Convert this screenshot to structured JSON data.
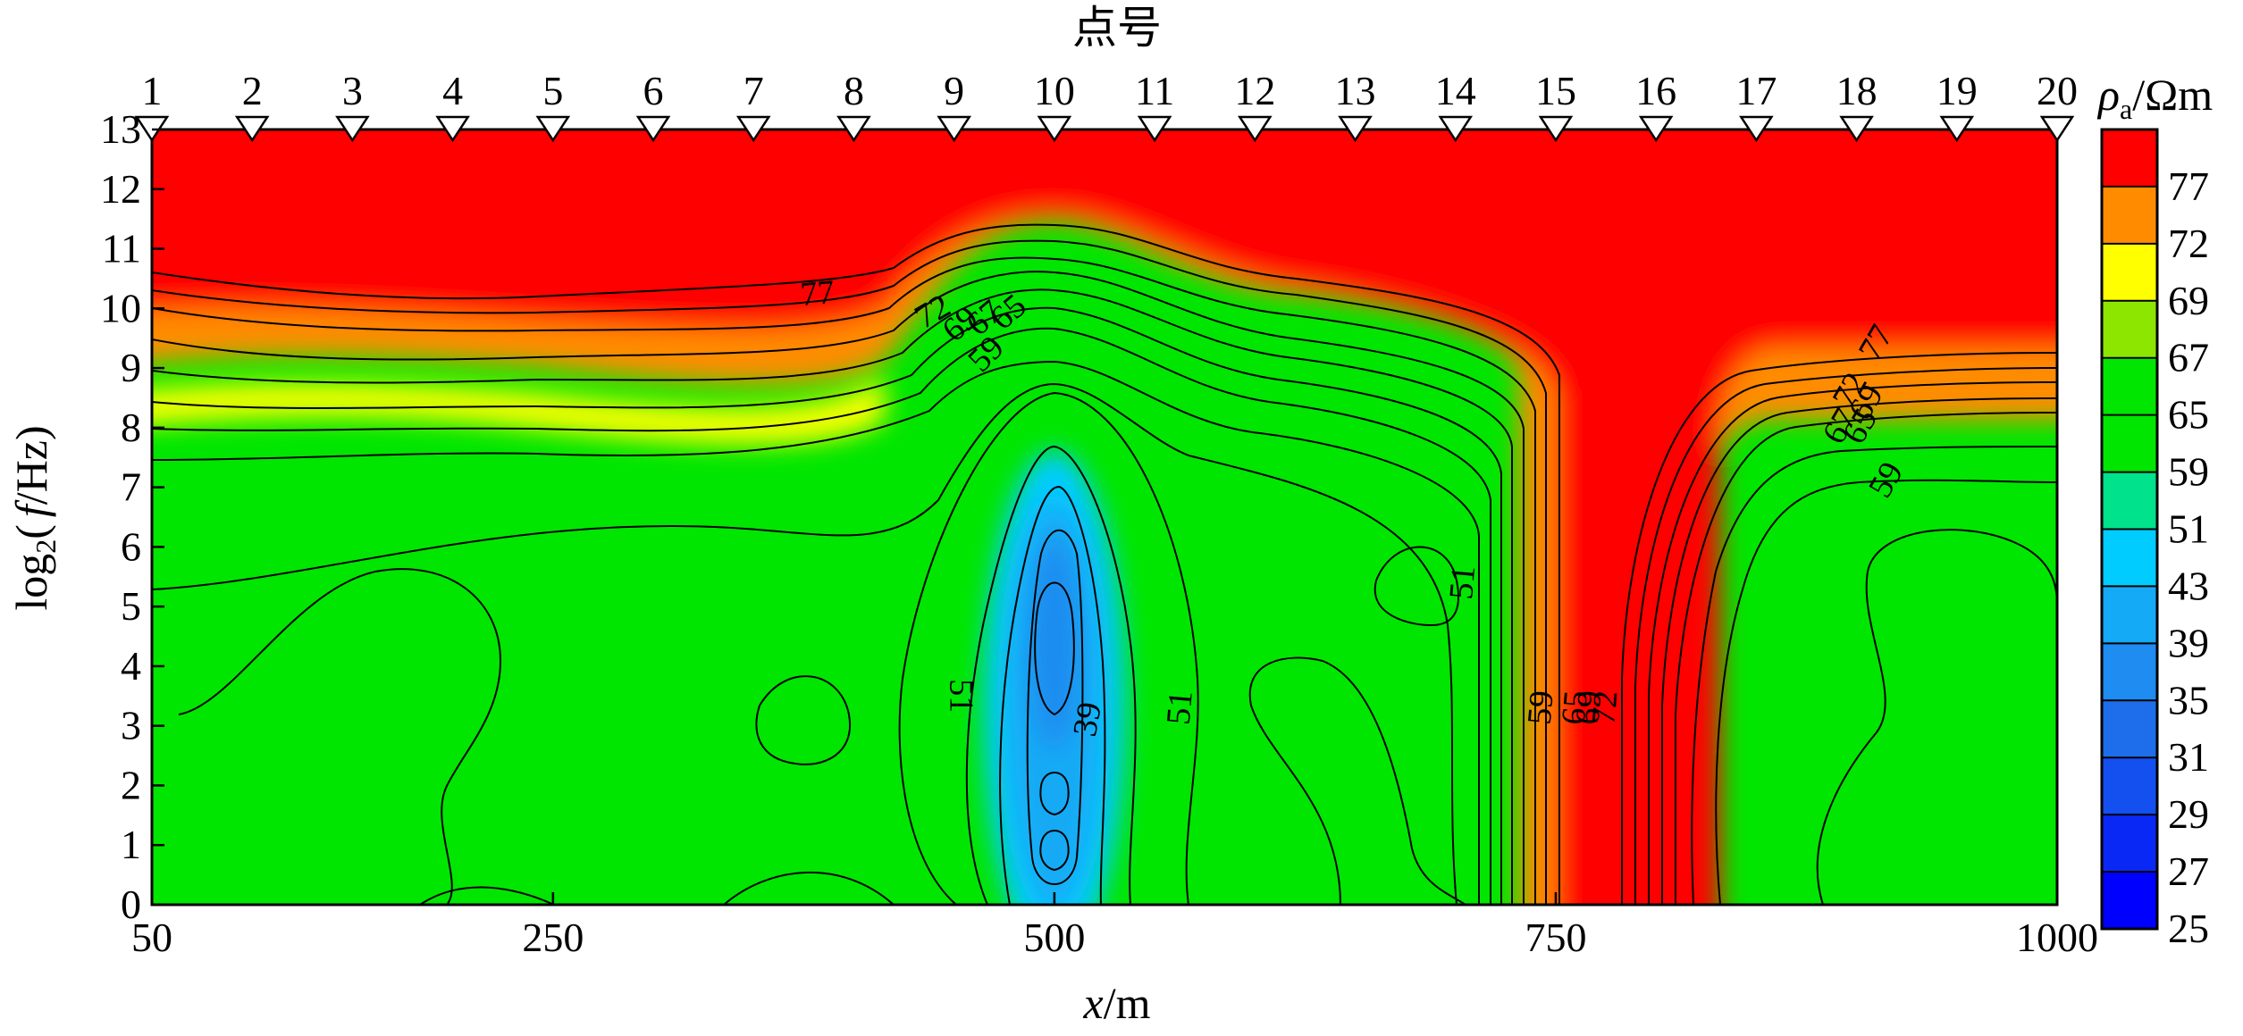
{
  "chart_data": {
    "type": "heatmap",
    "subtype": "filled-contour",
    "top_axis": {
      "title": "点号",
      "station_labels": [
        "1",
        "2",
        "3",
        "4",
        "5",
        "6",
        "7",
        "8",
        "9",
        "10",
        "11",
        "12",
        "13",
        "14",
        "15",
        "16",
        "17",
        "18",
        "19",
        "20"
      ],
      "station_x": [
        50,
        100,
        150,
        200,
        250,
        300,
        350,
        400,
        450,
        500,
        550,
        600,
        650,
        700,
        750,
        800,
        850,
        900,
        950,
        1000
      ]
    },
    "x_axis": {
      "title_italic": "x",
      "title_rest": "/m",
      "range": [
        50,
        1000
      ],
      "ticks": [
        50,
        250,
        500,
        750,
        1000
      ]
    },
    "y_axis": {
      "title_main": "log",
      "title_sub": "2",
      "title_open": "(",
      "title_italic": "f",
      "title_close": "/Hz)",
      "range": [
        0,
        13
      ],
      "ticks": [
        0,
        1,
        2,
        3,
        4,
        5,
        6,
        7,
        8,
        9,
        10,
        11,
        12,
        13
      ]
    },
    "colorbar": {
      "title_symbol": "ρ",
      "title_sub": "a",
      "title_unit": "/Ωm",
      "levels": [
        25,
        27,
        29,
        31,
        35,
        39,
        43,
        51,
        59,
        65,
        67,
        69,
        72,
        77
      ],
      "colors": [
        "#0000ff",
        "#0a28f5",
        "#1450f0",
        "#1e6eeb",
        "#1e8cf0",
        "#14aaf5",
        "#00ccff",
        "#00e28c",
        "#00e600",
        "#00e600",
        "#8ce600",
        "#ffff00",
        "#ff8c00",
        "#ff0000"
      ]
    },
    "contour_labels": [
      {
        "text": "77",
        "x": 382,
        "y": 10.2,
        "rot": -5
      },
      {
        "text": "72",
        "x": 440,
        "y": 9.9,
        "rot": -30
      },
      {
        "text": "69",
        "x": 454,
        "y": 9.7,
        "rot": -40
      },
      {
        "text": "67",
        "x": 466,
        "y": 9.8,
        "rot": -40
      },
      {
        "text": "65",
        "x": 478,
        "y": 9.9,
        "rot": -40
      },
      {
        "text": "59",
        "x": 467,
        "y": 9.2,
        "rot": -45
      },
      {
        "text": "51",
        "x": 452,
        "y": 3.5,
        "rot": 90
      },
      {
        "text": "39",
        "x": 518,
        "y": 3.1,
        "rot": -80
      },
      {
        "text": "51",
        "x": 564,
        "y": 3.3,
        "rot": -85
      },
      {
        "text": "51",
        "x": 705,
        "y": 5.4,
        "rot": -85
      },
      {
        "text": "59",
        "x": 744,
        "y": 3.3,
        "rot": -85
      },
      {
        "text": "65",
        "x": 761,
        "y": 3.3,
        "rot": -85
      },
      {
        "text": "69",
        "x": 768,
        "y": 3.3,
        "rot": -85
      },
      {
        "text": "72",
        "x": 776,
        "y": 3.3,
        "rot": -85
      },
      {
        "text": "77",
        "x": 911,
        "y": 9.4,
        "rot": -60
      },
      {
        "text": "72",
        "x": 898,
        "y": 8.6,
        "rot": -60
      },
      {
        "text": "69",
        "x": 906,
        "y": 8.4,
        "rot": -60
      },
      {
        "text": "67",
        "x": 893,
        "y": 8.0,
        "rot": -60
      },
      {
        "text": "65",
        "x": 903,
        "y": 8.0,
        "rot": -60
      },
      {
        "text": "59",
        "x": 916,
        "y": 7.1,
        "rot": -60
      }
    ]
  }
}
